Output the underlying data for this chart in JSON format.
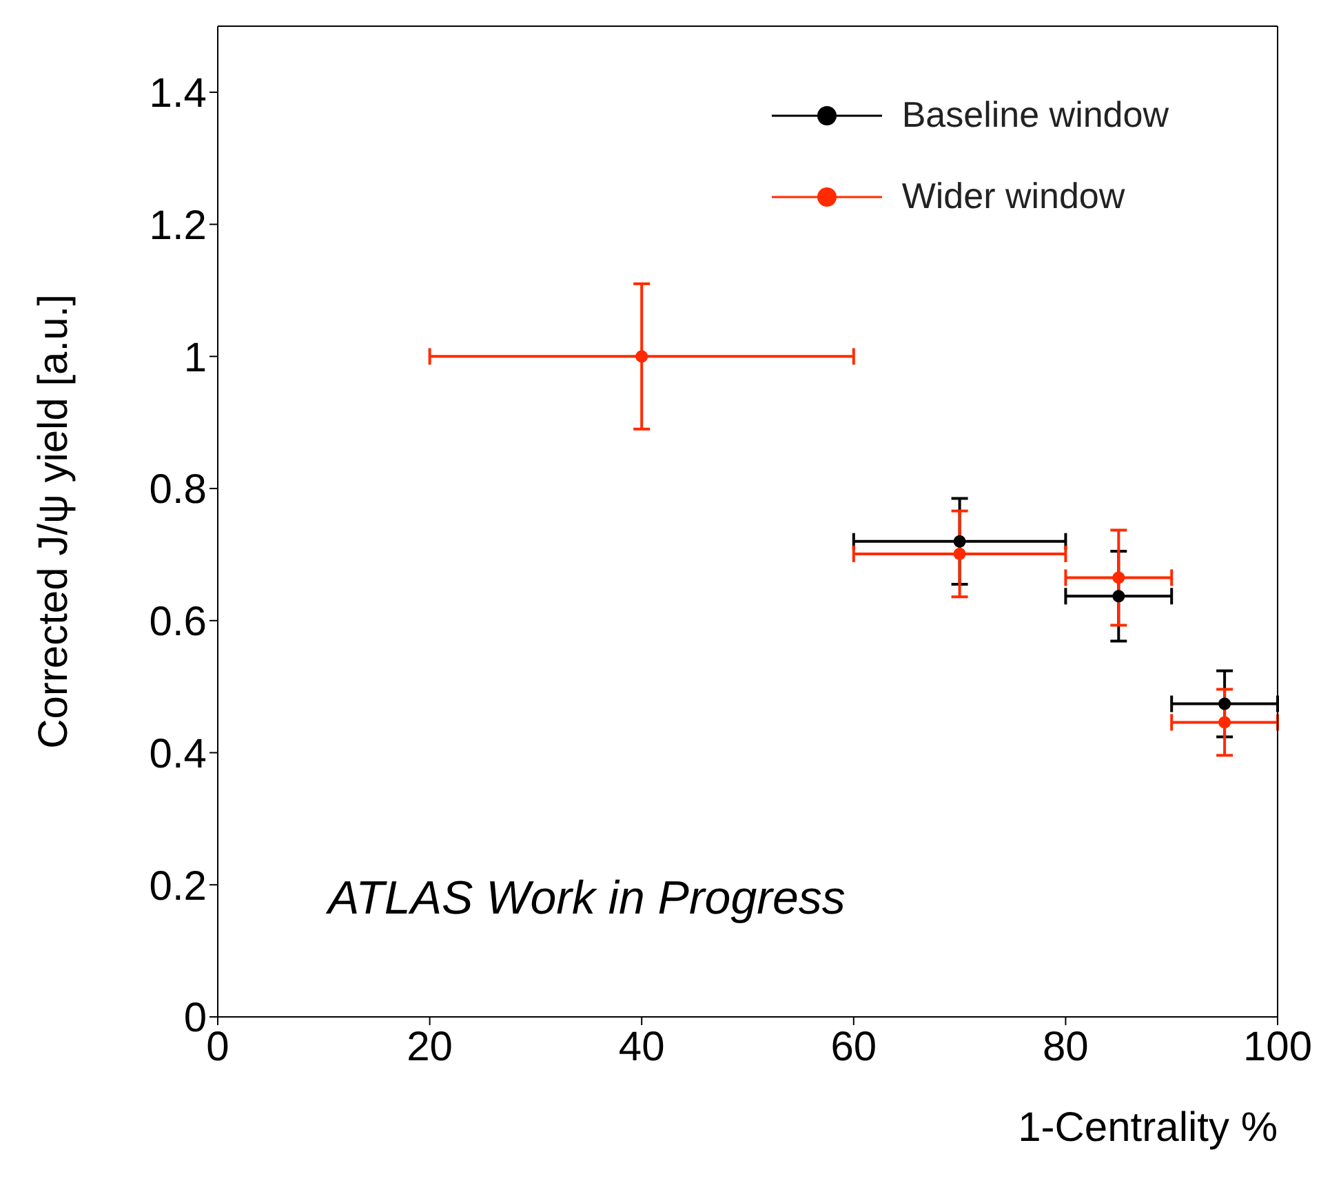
{
  "chart_data": {
    "type": "scatter",
    "xlabel": "1-Centrality %",
    "ylabel": "Corrected J/ψ yield [a.u.]",
    "x": [
      40,
      70,
      85,
      95
    ],
    "series": [
      {
        "name": "Baseline window",
        "color": "#000000",
        "values": [
          null,
          0.72,
          0.637,
          0.474
        ],
        "errors": [
          null,
          0.065,
          0.068,
          0.05
        ],
        "xerrors": [
          null,
          10,
          5,
          5
        ]
      },
      {
        "name": "Wider window",
        "color": "#ff2a00",
        "values": [
          1.0,
          0.701,
          0.665,
          0.446
        ],
        "errors": [
          0.11,
          0.065,
          0.072,
          0.05
        ],
        "xerrors": [
          20,
          10,
          5,
          5
        ]
      }
    ],
    "xlim": [
      0,
      100
    ],
    "xticks": [
      0,
      20,
      40,
      60,
      80,
      100
    ],
    "ylim": [
      0,
      1.5
    ],
    "yticks": [
      0,
      0.2,
      0.4,
      0.6,
      0.8,
      1,
      1.2,
      1.4
    ],
    "legend": "top right",
    "marker": "circle",
    "grid": false,
    "annotations": [
      "ATLAS Work in Progress"
    ]
  }
}
